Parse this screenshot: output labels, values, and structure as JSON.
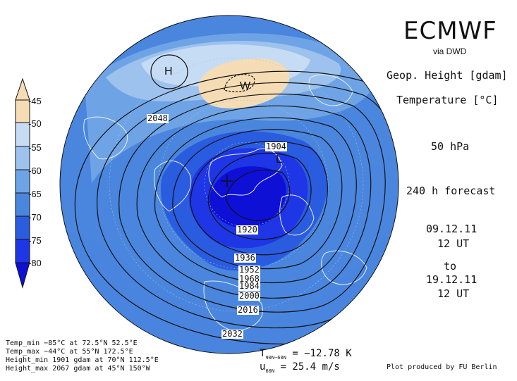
{
  "header": {
    "brand": "ECMWF",
    "via": "via DWD",
    "geo_height": "Geop. Height [gdam]",
    "temperature": "Temperature [°C]",
    "level": "50 hPa",
    "forecast": "240 h forecast",
    "init_date": "09.12.11",
    "init_time": "12 UT",
    "to": "to",
    "valid_date": "19.12.11",
    "valid_time": "12 UT"
  },
  "legend": {
    "labels": [
      "-45",
      "-50",
      "-55",
      "-60",
      "-65",
      "-70",
      "-75",
      "-80"
    ],
    "colors": [
      "#f5dcb4",
      "#c6dcf5",
      "#9ec2ee",
      "#6ea4e6",
      "#4a86de",
      "#2a5ce0",
      "#1e36e6",
      "#0e10d6"
    ]
  },
  "stats": {
    "temp_min": "Temp_min  −85°C at 72.5°N  52.5°E",
    "temp_max": "Temp_max  −44°C at 55°N  172.5°E",
    "height_min": "Height_min 1901 gdam at 70°N 112.5°E",
    "height_max": "Height_max 2067 gdam at 45°N 150°W"
  },
  "means": {
    "t_label": "T",
    "t_sub": "90N−60N",
    "t_value": "= −12.78 K",
    "u_label": "u",
    "u_sub": "60N",
    "u_value": "= 25.4 m/s"
  },
  "credit": "Plot produced by FU Berlin",
  "map": {
    "centers": {
      "high": "H",
      "low": "L",
      "warm": "W"
    },
    "contour_labels": [
      "2048",
      "1904",
      "1920",
      "1936",
      "1952",
      "1968",
      "1984",
      "2000",
      "2016",
      "2032"
    ],
    "colors": {
      "ocean_ring": "#4a86de",
      "cold_core": "#1e36e6",
      "warm_patch": "#f5dcb4",
      "contour": "#111111",
      "coast": "#e8eef8"
    }
  }
}
